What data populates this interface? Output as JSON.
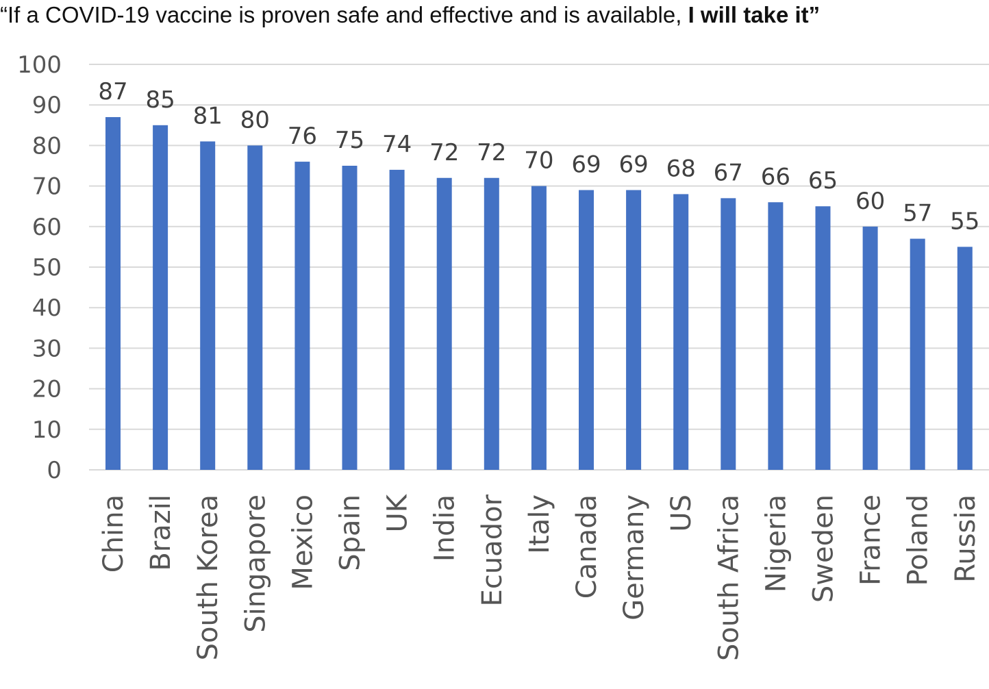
{
  "chart_data": {
    "type": "bar",
    "title_prefix": "“If a COVID-19 vaccine is proven safe and effective and is available, ",
    "title_emphasis": "I will take it”",
    "categories": [
      "China",
      "Brazil",
      "South Korea",
      "Singapore",
      "Mexico",
      "Spain",
      "UK",
      "India",
      "Ecuador",
      "Italy",
      "Canada",
      "Germany",
      "US",
      "South Africa",
      "Nigeria",
      "Sweden",
      "France",
      "Poland",
      "Russia"
    ],
    "values": [
      87,
      85,
      81,
      80,
      76,
      75,
      74,
      72,
      72,
      70,
      69,
      69,
      68,
      67,
      66,
      65,
      60,
      57,
      55
    ],
    "yticks": [
      0,
      10,
      20,
      30,
      40,
      50,
      60,
      70,
      80,
      90,
      100
    ],
    "ylim": [
      0,
      100
    ],
    "grid": true,
    "legend": "none",
    "bar_color": "#4472C4",
    "grid_color": "#D9D9D9"
  }
}
